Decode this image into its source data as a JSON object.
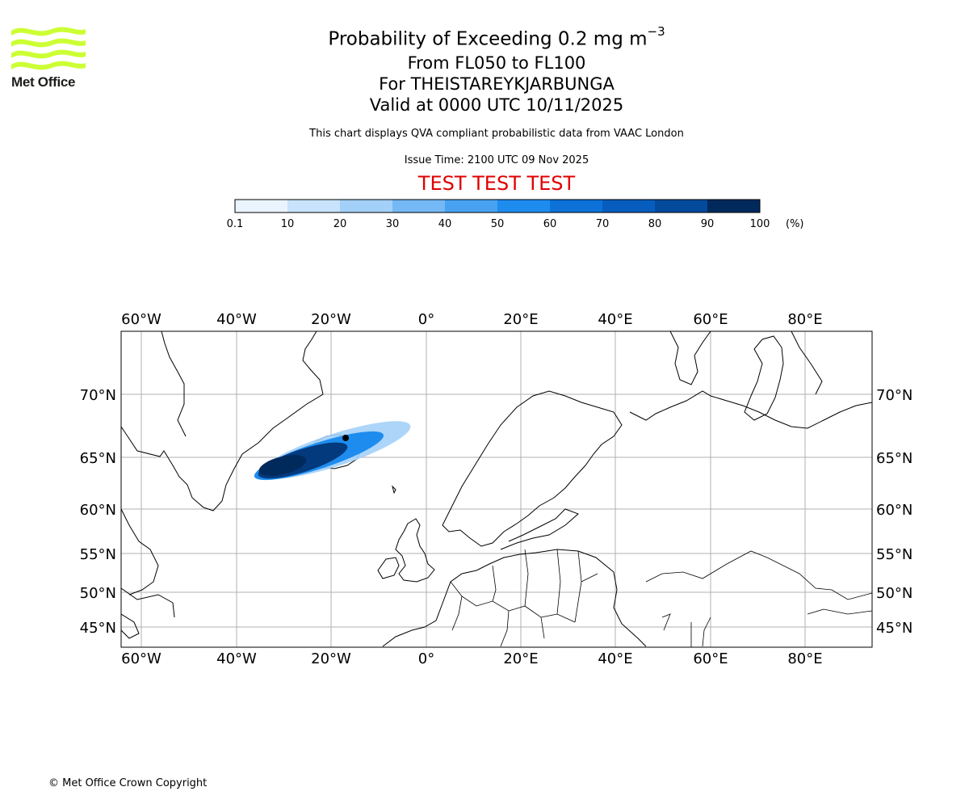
{
  "logo": {
    "text": "Met Office",
    "color": "#ccff33"
  },
  "header": {
    "title_main": "Probability of Exceeding 0.2 mg m",
    "title_exp": "−3",
    "line2": "From FL050 to FL100",
    "line3": "For THEISTAREYKJARBUNGA",
    "line4": "Valid at 0000 UTC 10/11/2025",
    "disclaimer": "This chart displays QVA compliant probabilistic data from VAAC London",
    "issue_time": "Issue Time: 2100 UTC 09 Nov 2025",
    "test_banner": "TEST TEST TEST"
  },
  "colorbar": {
    "labels": [
      "0.1",
      "10",
      "20",
      "30",
      "40",
      "50",
      "60",
      "70",
      "80",
      "90",
      "100"
    ],
    "unit": "(%)",
    "colors": [
      "#eaf4ff",
      "#c8e3fb",
      "#a3d0f8",
      "#74b9f5",
      "#48a2f2",
      "#1e8cef",
      "#0c72d8",
      "#065dbd",
      "#034a9c",
      "#023a7d",
      "#012a5c"
    ]
  },
  "map": {
    "lon_labels": [
      "60°W",
      "40°W",
      "20°W",
      "0°",
      "20°E",
      "40°E",
      "60°E",
      "80°E"
    ],
    "lat_labels": [
      "70°N",
      "65°N",
      "60°N",
      "55°N",
      "50°N",
      "45°N"
    ],
    "plume_main_color": "#023a7d"
  },
  "chart_data": {
    "type": "heatmap",
    "title": "Probability of Exceeding 0.2 mg m−3",
    "subtitle": "From FL050 to FL100 — For THEISTAREYKJARBUNGA — Valid at 0000 UTC 10/11/2025",
    "colorbar_levels": [
      0.1,
      10,
      20,
      30,
      40,
      50,
      60,
      70,
      80,
      90,
      100
    ],
    "colorbar_unit": "(%)",
    "x_ticks": [
      "60°W",
      "40°W",
      "20°W",
      "0°",
      "20°E",
      "40°E",
      "60°E",
      "80°E"
    ],
    "y_ticks": [
      "70°N",
      "65°N",
      "60°N",
      "55°N",
      "50°N",
      "45°N"
    ],
    "grid": true
  },
  "footer": {
    "copyright": "© Met Office Crown Copyright"
  }
}
